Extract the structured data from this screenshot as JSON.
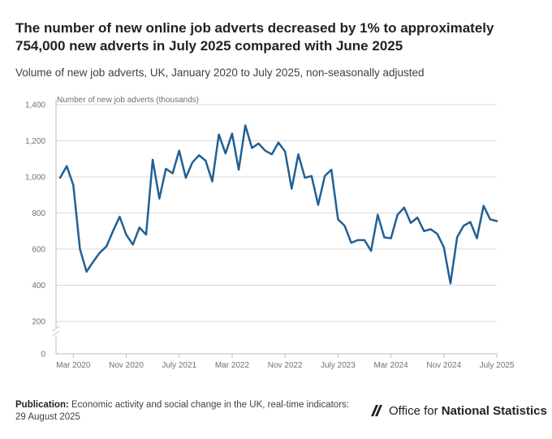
{
  "title": "The number of new online job adverts decreased by 1% to approximately 754,000 new adverts in July 2025 compared with June 2025",
  "subtitle": "Volume of new job adverts, UK, January 2020 to July 2025, non-seasonally adjusted",
  "footer": {
    "publication_label": "Publication:",
    "publication_text": "Economic activity and social change in the UK, real-time indicators:",
    "publication_date": "29 August 2025"
  },
  "logo": {
    "text_light": "Office for",
    "text_bold": "National Statistics"
  },
  "colors": {
    "line": "#206095",
    "grid": "#d9d9d9",
    "axis": "#bebebe"
  },
  "chart_data": {
    "type": "line",
    "title": "",
    "xlabel": "",
    "ylabel": "Number of new job adverts (thousands)",
    "ylim": [
      0,
      1400
    ],
    "yticks": [
      "0",
      "200",
      "400",
      "600",
      "800",
      "1,000",
      "1,200",
      "1,400"
    ],
    "y_axis_break": true,
    "grid": "horizontal",
    "xticks": [
      {
        "label": "Mar 2020",
        "index": 2
      },
      {
        "label": "Nov 2020",
        "index": 10
      },
      {
        "label": "July 2021",
        "index": 18
      },
      {
        "label": "Mar 2022",
        "index": 26
      },
      {
        "label": "Nov 2022",
        "index": 34
      },
      {
        "label": "July 2023",
        "index": 42
      },
      {
        "label": "Mar 2024",
        "index": 50
      },
      {
        "label": "Nov 2024",
        "index": 58
      },
      {
        "label": "July 2025",
        "index": 66
      }
    ],
    "series": [
      {
        "values": [
          995,
          1060,
          955,
          600,
          475,
          530,
          580,
          615,
          700,
          780,
          680,
          625,
          720,
          680,
          1095,
          880,
          1045,
          1020,
          1145,
          995,
          1080,
          1120,
          1090,
          975,
          1235,
          1130,
          1240,
          1040,
          1285,
          1160,
          1185,
          1145,
          1125,
          1190,
          1140,
          935,
          1125,
          995,
          1005,
          845,
          1005,
          1040,
          765,
          730,
          635,
          650,
          650,
          590,
          790,
          665,
          660,
          790,
          830,
          745,
          775,
          700,
          710,
          685,
          610,
          410,
          665,
          730,
          750,
          660,
          840,
          765,
          755
        ]
      }
    ]
  }
}
